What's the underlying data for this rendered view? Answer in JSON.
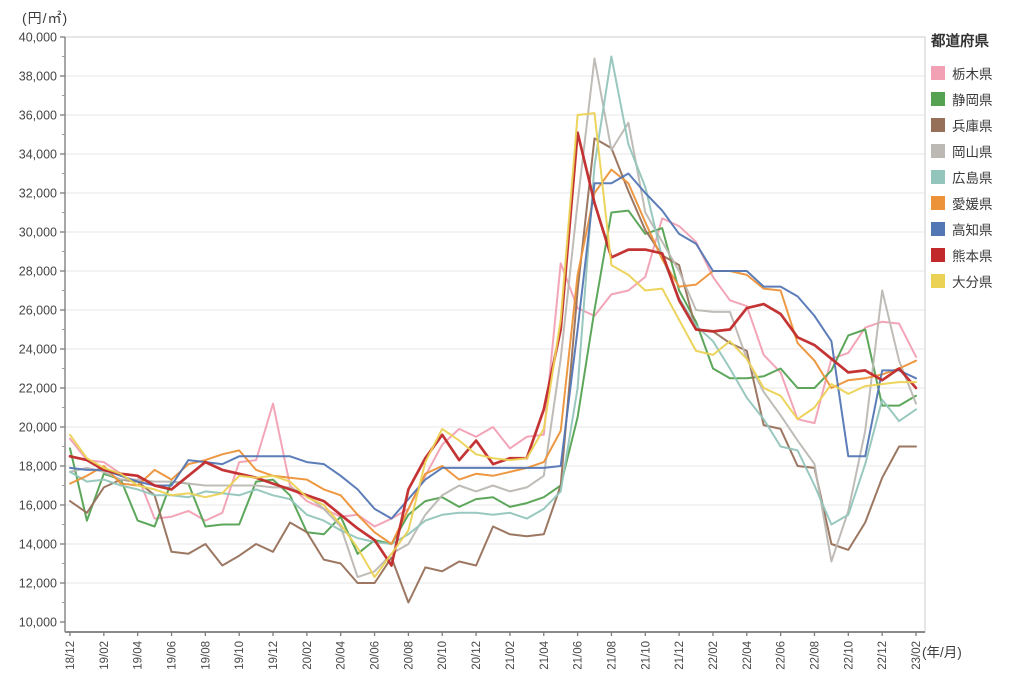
{
  "chart_data": {
    "type": "line",
    "title": "",
    "y_unit_label": "(円/㎡)",
    "x_unit_label": "(年/月)",
    "legend_title": "都道府県",
    "legend_position": "top-right",
    "grid": "horizontal",
    "ylim": [
      10000,
      40000
    ],
    "y_tick_step": 2000,
    "y_ticks": [
      "10,000",
      "12,000",
      "14,000",
      "16,000",
      "18,000",
      "20,000",
      "22,000",
      "24,000",
      "26,000",
      "28,000",
      "30,000",
      "32,000",
      "34,000",
      "36,000",
      "38,000",
      "40,000"
    ],
    "x": [
      "18/12",
      "19/01",
      "19/02",
      "19/03",
      "19/04",
      "19/05",
      "19/06",
      "19/07",
      "19/08",
      "19/09",
      "19/10",
      "19/11",
      "19/12",
      "20/01",
      "20/02",
      "20/03",
      "20/04",
      "20/05",
      "20/06",
      "20/07",
      "20/08",
      "20/09",
      "20/10",
      "20/11",
      "20/12",
      "21/01",
      "21/02",
      "21/03",
      "21/04",
      "21/05",
      "21/06",
      "21/07",
      "21/08",
      "21/09",
      "21/10",
      "21/11",
      "21/12",
      "22/01",
      "22/02",
      "22/03",
      "22/04",
      "22/05",
      "22/06",
      "22/07",
      "22/08",
      "22/09",
      "22/10",
      "22/11",
      "22/12",
      "23/01",
      "23/02"
    ],
    "x_tick_labels": [
      "18/12",
      "19/02",
      "19/04",
      "19/06",
      "19/08",
      "19/10",
      "19/12",
      "20/02",
      "20/04",
      "20/06",
      "20/08",
      "20/10",
      "20/12",
      "21/02",
      "21/04",
      "21/06",
      "21/08",
      "21/10",
      "21/12",
      "22/02",
      "22/04",
      "22/06",
      "22/08",
      "22/10",
      "22/12",
      "23/02"
    ],
    "series": [
      {
        "name": "栃木県",
        "color": "#f2a0b4",
        "width": 2,
        "values": [
          19400,
          18300,
          18200,
          17600,
          17500,
          15300,
          15400,
          15700,
          15200,
          15600,
          18200,
          18300,
          21200,
          17000,
          16200,
          15800,
          15400,
          15500,
          14900,
          15300,
          15800,
          17500,
          19100,
          19900,
          19500,
          20000,
          18900,
          19500,
          19600,
          28400,
          26100,
          25700,
          26800,
          27000,
          27700,
          30700,
          30300,
          29500,
          27700,
          26500,
          26200,
          23700,
          22800,
          20400,
          20200,
          23500,
          23800,
          25100,
          25400,
          25300,
          23600
        ]
      },
      {
        "name": "静岡県",
        "color": "#54a252",
        "width": 2,
        "values": [
          18900,
          15200,
          17600,
          17300,
          15200,
          14900,
          17200,
          17100,
          14900,
          15000,
          15000,
          17200,
          17300,
          16500,
          14600,
          14500,
          15400,
          13500,
          14200,
          14000,
          15500,
          16200,
          16400,
          15900,
          16300,
          16400,
          15900,
          16100,
          16400,
          17000,
          20500,
          26000,
          31000,
          31100,
          29900,
          30200,
          27000,
          25400,
          23000,
          22500,
          22500,
          22600,
          23000,
          22000,
          22000,
          22900,
          24700,
          25000,
          21100,
          21100,
          21600
        ]
      },
      {
        "name": "兵庫県",
        "color": "#97705a",
        "width": 2,
        "values": [
          16200,
          15600,
          16900,
          17300,
          17200,
          16500,
          13600,
          13500,
          14000,
          12900,
          13400,
          14000,
          13600,
          15100,
          14600,
          13200,
          13000,
          12000,
          12000,
          13300,
          11000,
          12800,
          12600,
          13100,
          12900,
          14900,
          14500,
          14400,
          14500,
          17000,
          27000,
          34800,
          34300,
          32100,
          30100,
          28800,
          28300,
          25000,
          24900,
          24300,
          23900,
          20100,
          19900,
          18000,
          17900,
          14000,
          13700,
          15100,
          17400,
          19000,
          19000
        ]
      },
      {
        "name": "岡山県",
        "color": "#bcb8b3",
        "width": 2,
        "values": [
          17700,
          17900,
          17700,
          17300,
          17300,
          17200,
          17200,
          17100,
          17000,
          17000,
          17000,
          17000,
          16900,
          16900,
          16500,
          15800,
          14900,
          12300,
          12600,
          13500,
          14000,
          15500,
          16500,
          17000,
          16700,
          17000,
          16700,
          16900,
          17500,
          23500,
          31500,
          38900,
          34200,
          35600,
          31000,
          29500,
          28000,
          26000,
          25900,
          25900,
          23500,
          21800,
          20600,
          19300,
          18100,
          13100,
          15700,
          19800,
          27000,
          23400,
          21200
        ]
      },
      {
        "name": "広島県",
        "color": "#94c5bc",
        "width": 2,
        "values": [
          17700,
          17200,
          17300,
          17000,
          16800,
          16500,
          16500,
          16400,
          16700,
          16600,
          16500,
          16800,
          16500,
          16300,
          15500,
          15200,
          14700,
          14300,
          14100,
          14000,
          14500,
          15200,
          15500,
          15600,
          15600,
          15500,
          15600,
          15300,
          15800,
          16700,
          22000,
          33400,
          39000,
          34500,
          32300,
          28700,
          26600,
          25200,
          24400,
          23000,
          21500,
          20400,
          19000,
          18800,
          17000,
          15000,
          15500,
          18100,
          21400,
          20300,
          20900
        ]
      },
      {
        "name": "愛媛県",
        "color": "#ec9238",
        "width": 2,
        "values": [
          17100,
          17500,
          18000,
          17100,
          17000,
          17800,
          17300,
          18100,
          18300,
          18600,
          18800,
          17800,
          17500,
          17400,
          17300,
          16800,
          16500,
          15500,
          14600,
          14000,
          15800,
          17600,
          18000,
          17300,
          17600,
          17500,
          17700,
          17900,
          18200,
          19800,
          27800,
          32000,
          33200,
          32500,
          30500,
          28600,
          27200,
          27300,
          28000,
          28000,
          27800,
          27100,
          27000,
          24300,
          23400,
          22000,
          22400,
          22500,
          22700,
          23000,
          23400
        ]
      },
      {
        "name": "高知県",
        "color": "#5376b4",
        "width": 2,
        "values": [
          17900,
          17800,
          17800,
          17500,
          17200,
          17000,
          17000,
          18300,
          18200,
          18100,
          18500,
          18500,
          18500,
          18500,
          18200,
          18100,
          17500,
          16800,
          15800,
          15300,
          16300,
          17300,
          17900,
          17900,
          17900,
          17900,
          17900,
          17900,
          17900,
          18000,
          25000,
          32500,
          32500,
          33000,
          32000,
          31100,
          29900,
          29400,
          28000,
          28000,
          28000,
          27200,
          27200,
          26700,
          25700,
          24400,
          18500,
          18500,
          22900,
          22900,
          22500
        ]
      },
      {
        "name": "熊本県",
        "color": "#c1292a",
        "width": 2.7,
        "values": [
          18500,
          18300,
          17800,
          17600,
          17500,
          17000,
          16800,
          17500,
          18200,
          17800,
          17600,
          17400,
          17100,
          16800,
          16500,
          16200,
          15500,
          14800,
          14200,
          12900,
          16800,
          18400,
          19600,
          18300,
          19300,
          18100,
          18400,
          18400,
          20900,
          25000,
          35100,
          31500,
          28700,
          29100,
          29100,
          28900,
          26500,
          25000,
          24900,
          25000,
          26100,
          26300,
          25800,
          24600,
          24200,
          23500,
          22800,
          22900,
          22400,
          23000,
          22000
        ]
      },
      {
        "name": "大分県",
        "color": "#ecd254",
        "width": 2,
        "values": [
          19600,
          18400,
          17900,
          17600,
          17000,
          16800,
          16500,
          16600,
          16400,
          16600,
          17500,
          17400,
          17500,
          17200,
          16400,
          16000,
          15000,
          13800,
          12300,
          13500,
          14700,
          18200,
          19900,
          19300,
          18600,
          18400,
          18300,
          18400,
          19900,
          25500,
          36000,
          36100,
          28300,
          27800,
          27000,
          27100,
          25500,
          23900,
          23700,
          24400,
          23500,
          22000,
          21600,
          20400,
          21000,
          22200,
          21700,
          22100,
          22200,
          22300,
          22300
        ]
      }
    ]
  }
}
